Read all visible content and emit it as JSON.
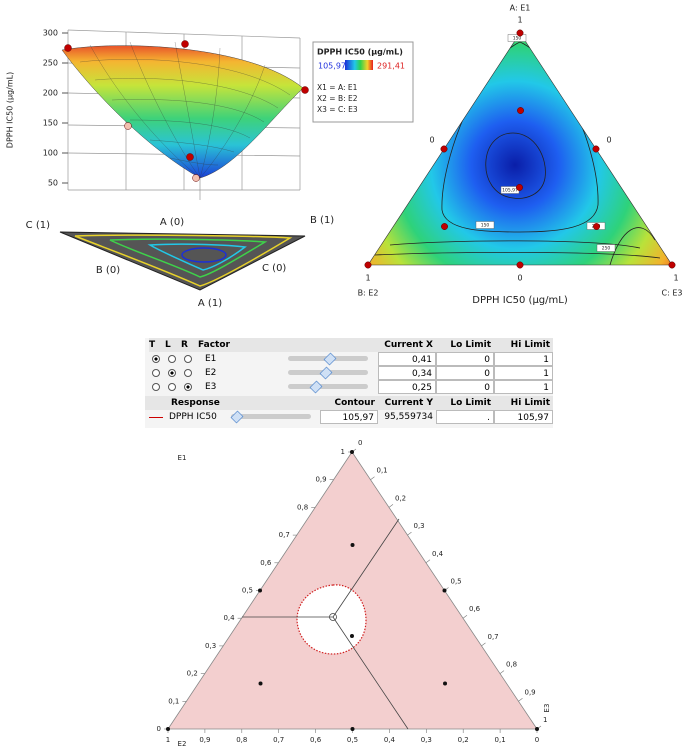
{
  "chart_data": [
    {
      "type": "surface3d",
      "zlabel": "DPPH IC50 (µg/mL)",
      "zlim": [
        50,
        300
      ],
      "zticks": [
        300,
        250,
        200,
        150,
        100,
        50
      ],
      "corner_labels": [
        "C (1)",
        "A (0)",
        "B (1)",
        "B (0)",
        "C (0)",
        "A (1)"
      ],
      "legend": {
        "title": "DPPH IC50 (µg/mL)",
        "min_label": "105,97",
        "max_label": "291,41",
        "mappings": [
          "X1 = A: E1",
          "X2 = B: E2",
          "X3 = C: E3"
        ]
      }
    },
    {
      "type": "ternary_contour",
      "vertex_labels": [
        "A: E1",
        "B: E2",
        "C: E3"
      ],
      "edge_tick_labels": [
        "1",
        "0",
        "0",
        "1",
        "0",
        "1"
      ],
      "xlabel": "DPPH IC50 (µg/mL)",
      "contour_labels": [
        "150",
        "105,97",
        "150",
        "200",
        "250"
      ],
      "point_color": "#c00000",
      "points": [
        [
          1,
          0,
          0
        ],
        [
          0,
          1,
          0
        ],
        [
          0,
          0,
          1
        ],
        [
          0.5,
          0.5,
          0
        ],
        [
          0.5,
          0,
          0.5
        ],
        [
          0,
          0.5,
          0.5
        ],
        [
          0.667,
          0.167,
          0.167
        ],
        [
          0.333,
          0.333,
          0.333
        ],
        [
          0.167,
          0.667,
          0.167
        ],
        [
          0.167,
          0.167,
          0.667
        ]
      ]
    },
    {
      "type": "ternary",
      "axis_labels": [
        "E1",
        "E2",
        "E3"
      ],
      "point_color": "#111111",
      "e1_ticks": [
        0,
        {
          "value": 0.1,
          "label": "0,1"
        },
        {
          "value": 0.2,
          "label": "0,2"
        },
        {
          "value": 0.3,
          "label": "0,3"
        },
        {
          "value": 0.4,
          "label": "0,4"
        },
        {
          "value": 0.5,
          "label": "0,5"
        },
        {
          "value": 0.6,
          "label": "0,6"
        },
        {
          "value": 0.7,
          "label": "0,7"
        },
        {
          "value": 0.8,
          "label": "0,8"
        },
        {
          "value": 0.9,
          "label": "0,9"
        },
        1
      ],
      "e2_ticks": [
        0,
        {
          "value": 0.1,
          "label": "0,1"
        },
        {
          "value": 0.2,
          "label": "0,2"
        },
        {
          "value": 0.3,
          "label": "0,3"
        },
        {
          "value": 0.4,
          "label": "0,4"
        },
        {
          "value": 0.5,
          "label": "0,5"
        },
        {
          "value": 0.6,
          "label": "0,6"
        },
        {
          "value": 0.7,
          "label": "0,7"
        },
        {
          "value": 0.8,
          "label": "0,8"
        },
        {
          "value": 0.9,
          "label": "0,9"
        },
        1
      ],
      "e3_ticks": [
        0,
        {
          "value": 0.1,
          "label": "0,1"
        },
        {
          "value": 0.2,
          "label": "0,2"
        },
        {
          "value": 0.3,
          "label": "0,3"
        },
        {
          "value": 0.4,
          "label": "0,4"
        },
        {
          "value": 0.5,
          "label": "0,5"
        },
        {
          "value": 0.6,
          "label": "0,6"
        },
        {
          "value": 0.7,
          "label": "0,7"
        },
        {
          "value": 0.8,
          "label": "0,8"
        },
        {
          "value": 0.9,
          "label": "0,9"
        },
        1
      ],
      "points": [
        [
          1,
          0,
          0
        ],
        [
          0,
          1,
          0
        ],
        [
          0,
          0,
          1
        ],
        [
          0.5,
          0.5,
          0
        ],
        [
          0.5,
          0,
          0.5
        ],
        [
          0,
          0.5,
          0.5
        ],
        [
          0.667,
          0.167,
          0.167
        ],
        [
          0.333,
          0.333,
          0.333
        ],
        [
          0.167,
          0.667,
          0.167
        ],
        [
          0.167,
          0.167,
          0.667
        ]
      ]
    }
  ],
  "profiler": {
    "headers": [
      "T",
      "L",
      "R",
      "Factor",
      "Current X",
      "Lo Limit",
      "Hi Limit"
    ],
    "factors": [
      [
        "E1",
        "0,41",
        "0",
        "1"
      ],
      [
        "E2",
        "0,34",
        "0",
        "1"
      ],
      [
        "E3",
        "0,25",
        "0",
        "1"
      ]
    ],
    "response_headers": [
      "Response",
      "Contour",
      "Current Y",
      "Lo Limit",
      "Hi Limit"
    ],
    "response": [
      "DPPH IC50",
      "105,97",
      "95,559734",
      ".",
      "105,97"
    ]
  }
}
